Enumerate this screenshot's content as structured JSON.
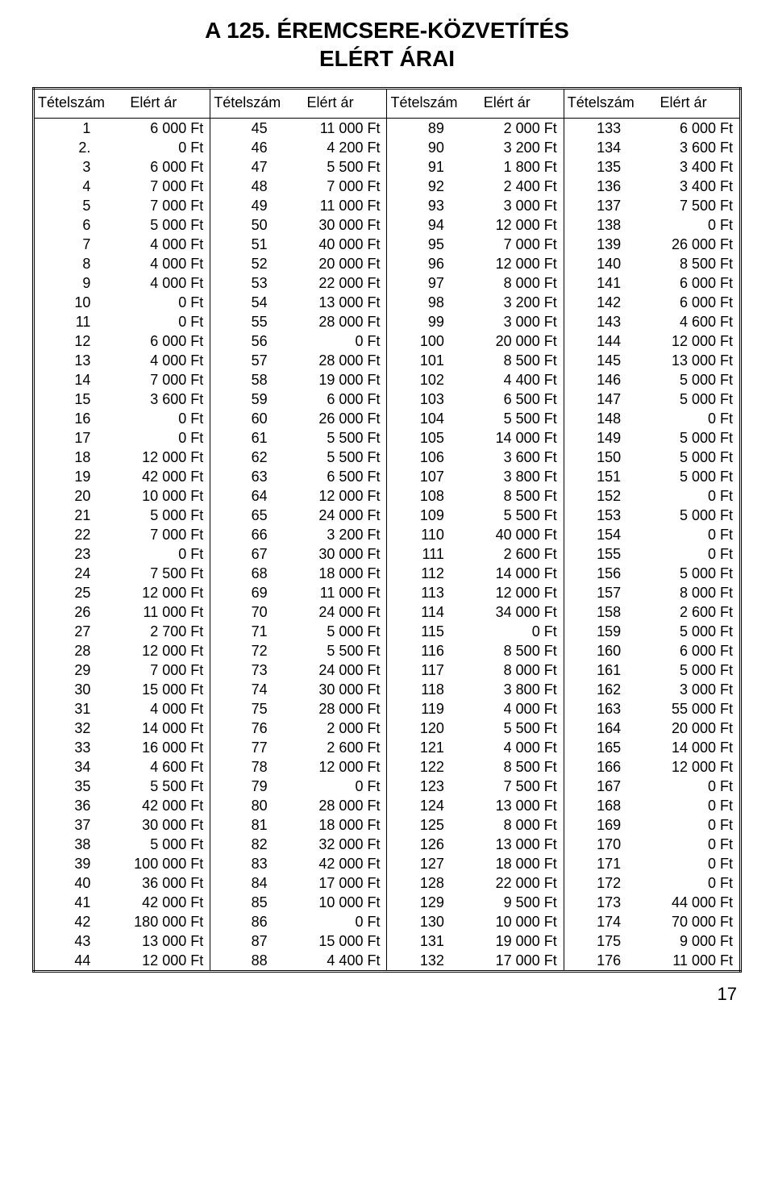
{
  "title_line1": "A 125. ÉREMCSERE-KÖZVETÍTÉS",
  "title_line2": "ELÉRT ÁRAI",
  "header_lot": "Tételszám",
  "header_price": "Elért ár",
  "page_number": "17",
  "columns": [
    [
      {
        "n": "1",
        "p": "6 000 Ft"
      },
      {
        "n": "2.",
        "p": "0 Ft"
      },
      {
        "n": "3",
        "p": "6 000 Ft"
      },
      {
        "n": "4",
        "p": "7 000 Ft"
      },
      {
        "n": "5",
        "p": "7 000 Ft"
      },
      {
        "n": "6",
        "p": "5 000 Ft"
      },
      {
        "n": "7",
        "p": "4 000 Ft"
      },
      {
        "n": "8",
        "p": "4 000 Ft"
      },
      {
        "n": "9",
        "p": "4 000 Ft"
      },
      {
        "n": "10",
        "p": "0 Ft"
      },
      {
        "n": "11",
        "p": "0 Ft"
      },
      {
        "n": "12",
        "p": "6 000 Ft"
      },
      {
        "n": "13",
        "p": "4 000 Ft"
      },
      {
        "n": "14",
        "p": "7 000 Ft"
      },
      {
        "n": "15",
        "p": "3 600 Ft"
      },
      {
        "n": "16",
        "p": "0 Ft"
      },
      {
        "n": "17",
        "p": "0 Ft"
      },
      {
        "n": "18",
        "p": "12 000 Ft"
      },
      {
        "n": "19",
        "p": "42 000 Ft"
      },
      {
        "n": "20",
        "p": "10 000 Ft"
      },
      {
        "n": "21",
        "p": "5 000 Ft"
      },
      {
        "n": "22",
        "p": "7 000 Ft"
      },
      {
        "n": "23",
        "p": "0 Ft"
      },
      {
        "n": "24",
        "p": "7 500 Ft"
      },
      {
        "n": "25",
        "p": "12 000 Ft"
      },
      {
        "n": "26",
        "p": "11 000 Ft"
      },
      {
        "n": "27",
        "p": "2 700 Ft"
      },
      {
        "n": "28",
        "p": "12 000 Ft"
      },
      {
        "n": "29",
        "p": "7 000 Ft"
      },
      {
        "n": "30",
        "p": "15 000 Ft"
      },
      {
        "n": "31",
        "p": "4 000 Ft"
      },
      {
        "n": "32",
        "p": "14 000 Ft"
      },
      {
        "n": "33",
        "p": "16 000 Ft"
      },
      {
        "n": "34",
        "p": "4 600 Ft"
      },
      {
        "n": "35",
        "p": "5 500 Ft"
      },
      {
        "n": "36",
        "p": "42 000 Ft"
      },
      {
        "n": "37",
        "p": "30 000 Ft"
      },
      {
        "n": "38",
        "p": "5 000 Ft"
      },
      {
        "n": "39",
        "p": "100 000 Ft"
      },
      {
        "n": "40",
        "p": "36 000 Ft"
      },
      {
        "n": "41",
        "p": "42 000 Ft"
      },
      {
        "n": "42",
        "p": "180 000 Ft"
      },
      {
        "n": "43",
        "p": "13 000 Ft"
      },
      {
        "n": "44",
        "p": "12 000 Ft"
      }
    ],
    [
      {
        "n": "45",
        "p": "11 000 Ft"
      },
      {
        "n": "46",
        "p": "4 200 Ft"
      },
      {
        "n": "47",
        "p": "5 500 Ft"
      },
      {
        "n": "48",
        "p": "7 000 Ft"
      },
      {
        "n": "49",
        "p": "11 000 Ft"
      },
      {
        "n": "50",
        "p": "30 000 Ft"
      },
      {
        "n": "51",
        "p": "40 000 Ft"
      },
      {
        "n": "52",
        "p": "20 000 Ft"
      },
      {
        "n": "53",
        "p": "22 000 Ft"
      },
      {
        "n": "54",
        "p": "13 000 Ft"
      },
      {
        "n": "55",
        "p": "28 000 Ft"
      },
      {
        "n": "56",
        "p": "0 Ft"
      },
      {
        "n": "57",
        "p": "28 000 Ft"
      },
      {
        "n": "58",
        "p": "19 000 Ft"
      },
      {
        "n": "59",
        "p": "6 000 Ft"
      },
      {
        "n": "60",
        "p": "26 000 Ft"
      },
      {
        "n": "61",
        "p": "5 500 Ft"
      },
      {
        "n": "62",
        "p": "5 500 Ft"
      },
      {
        "n": "63",
        "p": "6 500 Ft"
      },
      {
        "n": "64",
        "p": "12 000 Ft"
      },
      {
        "n": "65",
        "p": "24 000 Ft"
      },
      {
        "n": "66",
        "p": "3 200 Ft"
      },
      {
        "n": "67",
        "p": "30 000 Ft"
      },
      {
        "n": "68",
        "p": "18 000 Ft"
      },
      {
        "n": "69",
        "p": "11 000 Ft"
      },
      {
        "n": "70",
        "p": "24 000 Ft"
      },
      {
        "n": "71",
        "p": "5 000 Ft"
      },
      {
        "n": "72",
        "p": "5 500 Ft"
      },
      {
        "n": "73",
        "p": "24 000 Ft"
      },
      {
        "n": "74",
        "p": "30 000 Ft"
      },
      {
        "n": "75",
        "p": "28 000 Ft"
      },
      {
        "n": "76",
        "p": "2 000 Ft"
      },
      {
        "n": "77",
        "p": "2 600 Ft"
      },
      {
        "n": "78",
        "p": "12 000 Ft"
      },
      {
        "n": "79",
        "p": "0 Ft"
      },
      {
        "n": "80",
        "p": "28 000 Ft"
      },
      {
        "n": "81",
        "p": "18 000 Ft"
      },
      {
        "n": "82",
        "p": "32 000 Ft"
      },
      {
        "n": "83",
        "p": "42 000 Ft"
      },
      {
        "n": "84",
        "p": "17 000 Ft"
      },
      {
        "n": "85",
        "p": "10 000 Ft"
      },
      {
        "n": "86",
        "p": "0 Ft"
      },
      {
        "n": "87",
        "p": "15 000 Ft"
      },
      {
        "n": "88",
        "p": "4 400 Ft"
      }
    ],
    [
      {
        "n": "89",
        "p": "2 000 Ft"
      },
      {
        "n": "90",
        "p": "3 200 Ft"
      },
      {
        "n": "91",
        "p": "1 800 Ft"
      },
      {
        "n": "92",
        "p": "2 400 Ft"
      },
      {
        "n": "93",
        "p": "3 000 Ft"
      },
      {
        "n": "94",
        "p": "12 000 Ft"
      },
      {
        "n": "95",
        "p": "7 000 Ft"
      },
      {
        "n": "96",
        "p": "12 000 Ft"
      },
      {
        "n": "97",
        "p": "8 000 Ft"
      },
      {
        "n": "98",
        "p": "3 200 Ft"
      },
      {
        "n": "99",
        "p": "3 000 Ft"
      },
      {
        "n": "100",
        "p": "20 000 Ft"
      },
      {
        "n": "101",
        "p": "8 500 Ft"
      },
      {
        "n": "102",
        "p": "4 400 Ft"
      },
      {
        "n": "103",
        "p": "6 500 Ft"
      },
      {
        "n": "104",
        "p": "5 500 Ft"
      },
      {
        "n": "105",
        "p": "14 000 Ft"
      },
      {
        "n": "106",
        "p": "3 600 Ft"
      },
      {
        "n": "107",
        "p": "3 800 Ft"
      },
      {
        "n": "108",
        "p": "8 500 Ft"
      },
      {
        "n": "109",
        "p": "5 500 Ft"
      },
      {
        "n": "110",
        "p": "40 000 Ft"
      },
      {
        "n": "111",
        "p": "2 600 Ft"
      },
      {
        "n": "112",
        "p": "14 000 Ft"
      },
      {
        "n": "113",
        "p": "12 000 Ft"
      },
      {
        "n": "114",
        "p": "34 000 Ft"
      },
      {
        "n": "115",
        "p": "0 Ft"
      },
      {
        "n": "116",
        "p": "8 500 Ft"
      },
      {
        "n": "117",
        "p": "8 000 Ft"
      },
      {
        "n": "118",
        "p": "3 800 Ft"
      },
      {
        "n": "119",
        "p": "4 000 Ft"
      },
      {
        "n": "120",
        "p": "5 500 Ft"
      },
      {
        "n": "121",
        "p": "4 000 Ft"
      },
      {
        "n": "122",
        "p": "8 500 Ft"
      },
      {
        "n": "123",
        "p": "7 500 Ft"
      },
      {
        "n": "124",
        "p": "13 000 Ft"
      },
      {
        "n": "125",
        "p": "8 000 Ft"
      },
      {
        "n": "126",
        "p": "13 000 Ft"
      },
      {
        "n": "127",
        "p": "18 000 Ft"
      },
      {
        "n": "128",
        "p": "22 000 Ft"
      },
      {
        "n": "129",
        "p": "9 500 Ft"
      },
      {
        "n": "130",
        "p": "10 000 Ft"
      },
      {
        "n": "131",
        "p": "19 000 Ft"
      },
      {
        "n": "132",
        "p": "17 000 Ft"
      }
    ],
    [
      {
        "n": "133",
        "p": "6 000 Ft"
      },
      {
        "n": "134",
        "p": "3 600 Ft"
      },
      {
        "n": "135",
        "p": "3 400 Ft"
      },
      {
        "n": "136",
        "p": "3 400 Ft"
      },
      {
        "n": "137",
        "p": "7 500 Ft"
      },
      {
        "n": "138",
        "p": "0 Ft"
      },
      {
        "n": "139",
        "p": "26 000 Ft"
      },
      {
        "n": "140",
        "p": "8 500 Ft"
      },
      {
        "n": "141",
        "p": "6 000 Ft"
      },
      {
        "n": "142",
        "p": "6 000 Ft"
      },
      {
        "n": "143",
        "p": "4 600 Ft"
      },
      {
        "n": "144",
        "p": "12 000 Ft"
      },
      {
        "n": "145",
        "p": "13 000 Ft"
      },
      {
        "n": "146",
        "p": "5 000 Ft"
      },
      {
        "n": "147",
        "p": "5 000 Ft"
      },
      {
        "n": "148",
        "p": "0 Ft"
      },
      {
        "n": "149",
        "p": "5 000 Ft"
      },
      {
        "n": "150",
        "p": "5 000 Ft"
      },
      {
        "n": "151",
        "p": "5 000 Ft"
      },
      {
        "n": "152",
        "p": "0 Ft"
      },
      {
        "n": "153",
        "p": "5 000 Ft"
      },
      {
        "n": "154",
        "p": "0 Ft"
      },
      {
        "n": "155",
        "p": "0 Ft"
      },
      {
        "n": "156",
        "p": "5 000 Ft"
      },
      {
        "n": "157",
        "p": "8 000 Ft"
      },
      {
        "n": "158",
        "p": "2 600 Ft"
      },
      {
        "n": "159",
        "p": "5 000 Ft"
      },
      {
        "n": "160",
        "p": "6 000 Ft"
      },
      {
        "n": "161",
        "p": "5 000 Ft"
      },
      {
        "n": "162",
        "p": "3 000 Ft"
      },
      {
        "n": "163",
        "p": "55 000 Ft"
      },
      {
        "n": "164",
        "p": "20 000 Ft"
      },
      {
        "n": "165",
        "p": "14 000 Ft"
      },
      {
        "n": "166",
        "p": "12 000 Ft"
      },
      {
        "n": "167",
        "p": "0 Ft"
      },
      {
        "n": "168",
        "p": "0 Ft"
      },
      {
        "n": "169",
        "p": "0 Ft"
      },
      {
        "n": "170",
        "p": "0 Ft"
      },
      {
        "n": "171",
        "p": "0 Ft"
      },
      {
        "n": "172",
        "p": "0 Ft"
      },
      {
        "n": "173",
        "p": "44 000 Ft"
      },
      {
        "n": "174",
        "p": "70 000 Ft"
      },
      {
        "n": "175",
        "p": "9 000 Ft"
      },
      {
        "n": "176",
        "p": "11 000 Ft"
      }
    ]
  ]
}
